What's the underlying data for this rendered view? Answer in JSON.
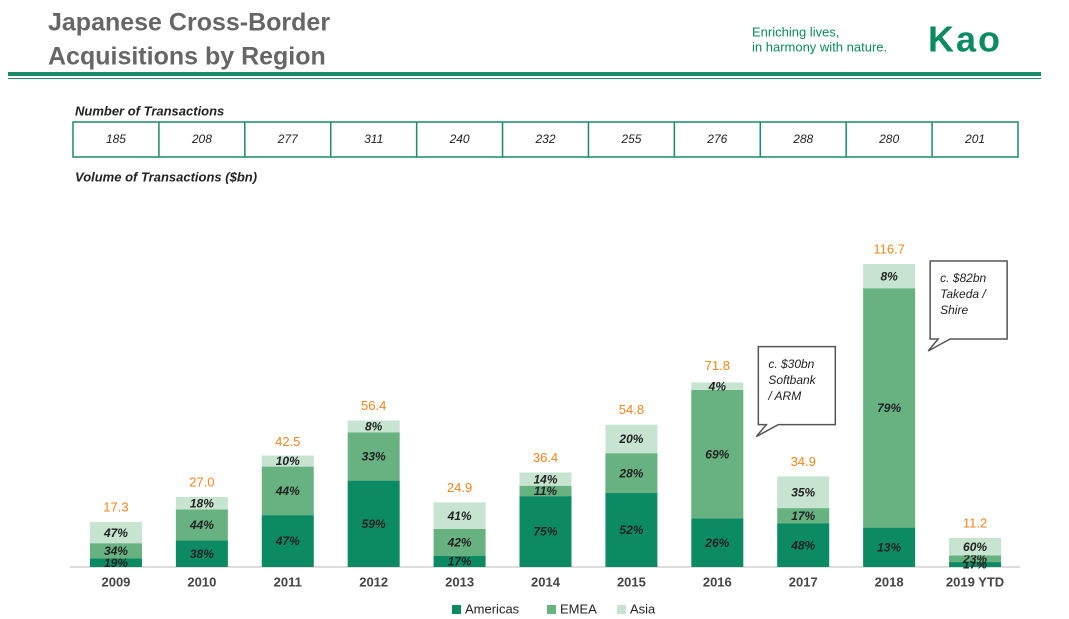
{
  "header": {
    "title_lines": [
      "Japanese Cross-Border",
      "Acquisitions by Region"
    ],
    "tagline_lines": [
      "Enriching lives,",
      "in harmony with nature."
    ],
    "logo": "Kao"
  },
  "chart_data": {
    "type": "stacked_bar",
    "transactions": {
      "label": "Number of Transactions",
      "values": [
        185,
        208,
        277,
        311,
        240,
        232,
        255,
        276,
        288,
        280,
        201
      ]
    },
    "subtitle": "Volume of Transactions ($bn)",
    "categories": [
      "2009",
      "2010",
      "2011",
      "2012",
      "2013",
      "2014",
      "2015",
      "2016",
      "2017",
      "2018",
      "2019 YTD"
    ],
    "totals": {
      "values": [
        17.3,
        27.0,
        42.5,
        56.4,
        24.9,
        36.4,
        54.8,
        71.8,
        34.9,
        116.7,
        11.2
      ],
      "value_labels": [
        "17.3",
        "27.0",
        "42.5",
        "56.4",
        "24.9",
        "36.4",
        "54.8",
        "71.8",
        "34.9",
        "116.7",
        "11.2"
      ],
      "color": "#f0841e"
    },
    "series": [
      {
        "name": "Americas",
        "color": "#0b8a63",
        "values": [
          19,
          38,
          47,
          59,
          17,
          75,
          52,
          26,
          48,
          13,
          17
        ],
        "value_labels": [
          "19%",
          "38%",
          "47%",
          "59%",
          "17%",
          "75%",
          "52%",
          "26%",
          "48%",
          "13%",
          "17%"
        ]
      },
      {
        "name": "EMEA",
        "color": "#67b280",
        "values": [
          34,
          44,
          44,
          33,
          42,
          11,
          28,
          69,
          17,
          79,
          23
        ],
        "value_labels": [
          "34%",
          "44%",
          "44%",
          "33%",
          "42%",
          "11%",
          "28%",
          "69%",
          "17%",
          "79%",
          "23%"
        ]
      },
      {
        "name": "Asia",
        "color": "#c6e4d0",
        "values": [
          47,
          18,
          10,
          8,
          41,
          14,
          20,
          4,
          35,
          8,
          60
        ],
        "value_labels": [
          "47%",
          "18%",
          "10%",
          "8%",
          "41%",
          "14%",
          "20%",
          "4%",
          "35%",
          "8%",
          "60%"
        ]
      }
    ],
    "annotations": [
      {
        "category": "2016",
        "lines": [
          "c. $30bn",
          "Softbank",
          "/ ARM"
        ]
      },
      {
        "category": "2018",
        "lines": [
          "c. $82bn",
          "Takeda /",
          "Shire"
        ]
      }
    ],
    "legend": "bottom"
  }
}
